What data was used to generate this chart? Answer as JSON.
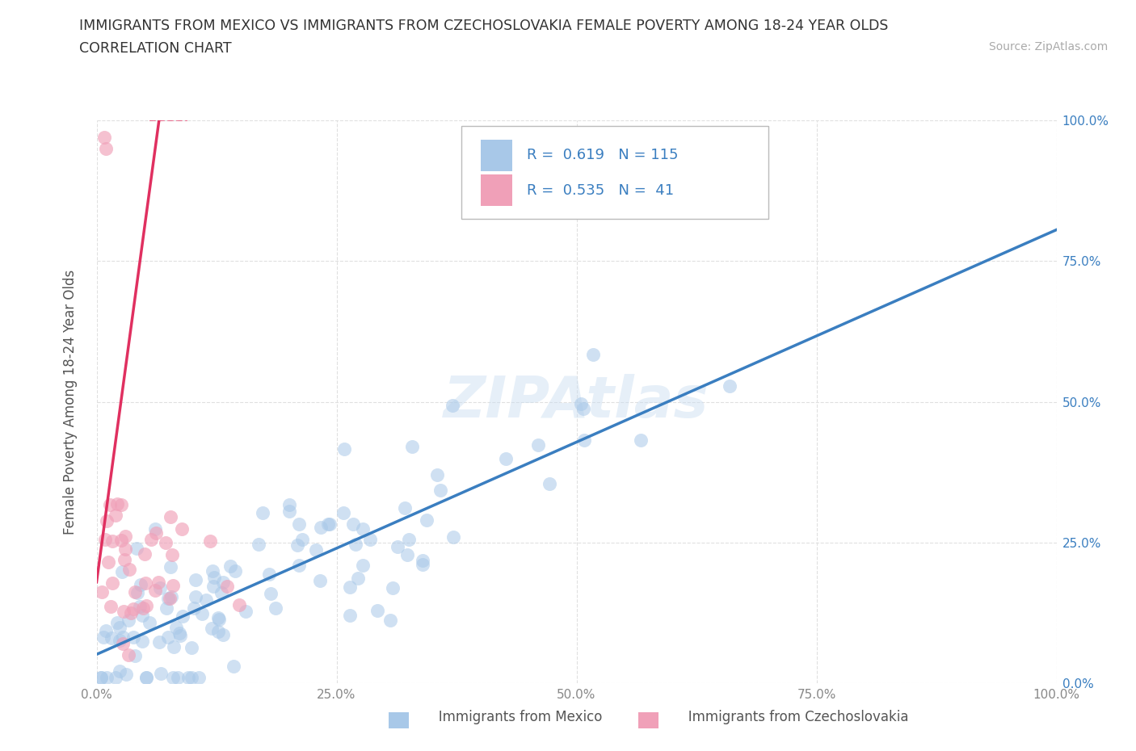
{
  "title_line1": "IMMIGRANTS FROM MEXICO VS IMMIGRANTS FROM CZECHOSLOVAKIA FEMALE POVERTY AMONG 18-24 YEAR OLDS",
  "title_line2": "CORRELATION CHART",
  "source_text": "Source: ZipAtlas.com",
  "ylabel": "Female Poverty Among 18-24 Year Olds",
  "watermark": "ZIPAtlas",
  "xlim": [
    0.0,
    1.0
  ],
  "ylim": [
    0.0,
    1.0
  ],
  "xtick_labels": [
    "0.0%",
    "25.0%",
    "50.0%",
    "75.0%",
    "100.0%"
  ],
  "xtick_vals": [
    0.0,
    0.25,
    0.5,
    0.75,
    1.0
  ],
  "ytick_labels": [
    "0.0%",
    "25.0%",
    "50.0%",
    "75.0%",
    "100.0%"
  ],
  "ytick_vals": [
    0.0,
    0.25,
    0.5,
    0.75,
    1.0
  ],
  "mexico_color": "#A8C8E8",
  "czech_color": "#F0A0B8",
  "mexico_line_color": "#3A7EC0",
  "czech_line_color": "#E03060",
  "mexico_R": 0.619,
  "mexico_N": 115,
  "czech_R": 0.535,
  "czech_N": 41,
  "legend_R_color": "#3A7EC0",
  "background_color": "#FFFFFF",
  "grid_color": "#E0E0E0",
  "grid_style": "--"
}
